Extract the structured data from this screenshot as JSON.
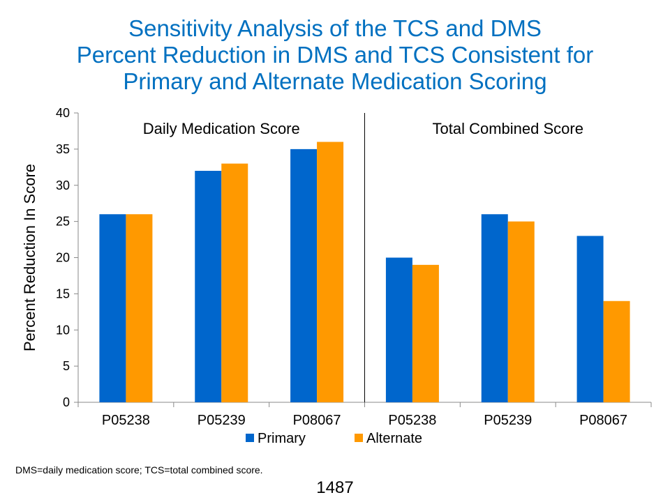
{
  "title_lines": [
    "Sensitivity Analysis of the TCS and DMS",
    "Percent Reduction in DMS and TCS Consistent for",
    "Primary and Alternate Medication Scoring"
  ],
  "footnote": "DMS=daily medication score; TCS=total combined score.",
  "page_number": "1487",
  "chart_data": {
    "type": "bar",
    "ylabel": "Percent Reduction In Score",
    "ylim": [
      0,
      40
    ],
    "yticks": [
      0,
      5,
      10,
      15,
      20,
      25,
      30,
      35,
      40
    ],
    "grid": false,
    "legend_position": "bottom",
    "groups": [
      {
        "label": "Daily Medication Score",
        "categories": [
          "P05238",
          "P05239",
          "P08067"
        ],
        "series": [
          {
            "name": "Primary",
            "values": [
              26,
              32,
              35
            ]
          },
          {
            "name": "Alternate",
            "values": [
              26,
              33,
              36
            ]
          }
        ]
      },
      {
        "label": "Total Combined Score",
        "categories": [
          "P05238",
          "P05239",
          "P08067"
        ],
        "series": [
          {
            "name": "Primary",
            "values": [
              20,
              26,
              23
            ]
          },
          {
            "name": "Alternate",
            "values": [
              19,
              25,
              14
            ]
          }
        ]
      }
    ],
    "legend": [
      {
        "name": "Primary",
        "color": "#0066cc"
      },
      {
        "name": "Alternate",
        "color": "#ff9900"
      }
    ]
  }
}
